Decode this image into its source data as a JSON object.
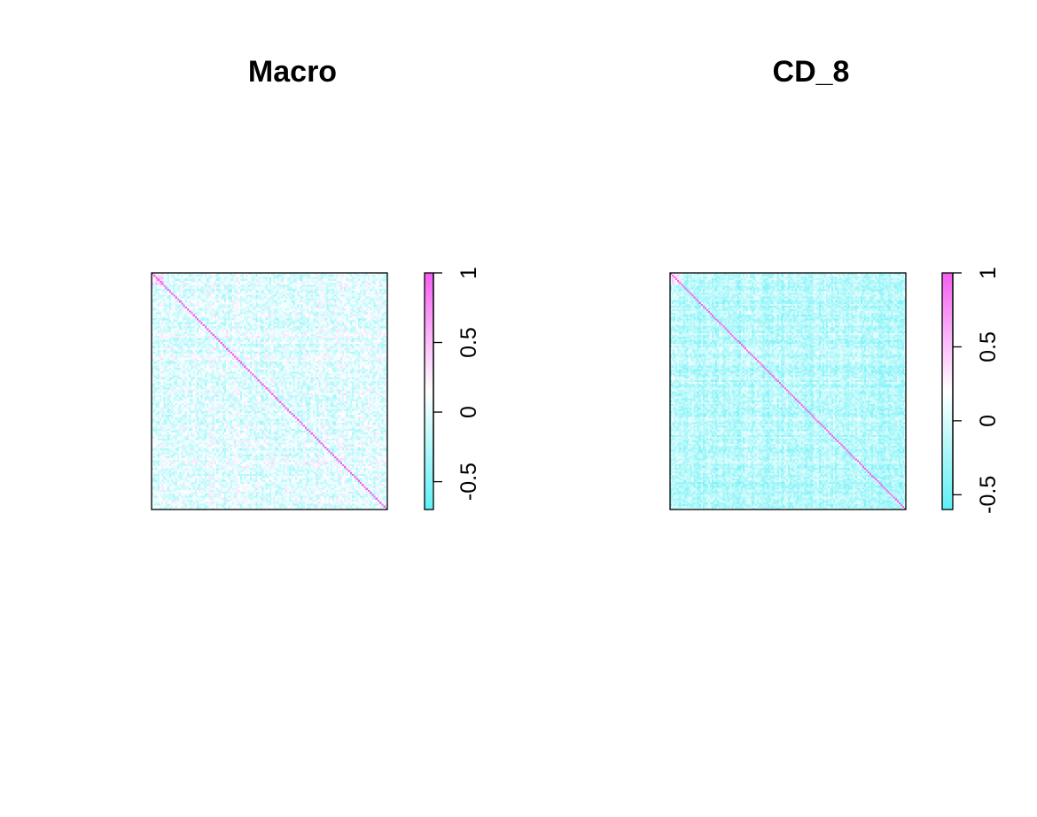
{
  "chart_data": [
    {
      "type": "heatmap",
      "title": "Macro",
      "matrix": "correlation matrix (cells drawn without row/column labels)",
      "diagonal_value": 1,
      "off_diagonal_typical_range": [
        -0.3,
        0.3
      ],
      "colorbar": {
        "range": [
          -0.7,
          1
        ],
        "ticks": [
          -0.5,
          0,
          0.5,
          1
        ],
        "tick_labels": [
          "-0.5",
          "0",
          "0.5",
          "1"
        ],
        "low_color": "#5ef0f5",
        "mid_color": "#ffffff",
        "high_color": "#f55ef0"
      },
      "xlabel": "",
      "ylabel": ""
    },
    {
      "type": "heatmap",
      "title": "CD_8",
      "matrix": "correlation matrix (cells drawn without row/column labels)",
      "diagonal_value": 1,
      "off_diagonal_typical_range": [
        -0.4,
        0.1
      ],
      "colorbar": {
        "range": [
          -0.6,
          1
        ],
        "ticks": [
          -0.5,
          0,
          0.5,
          1
        ],
        "tick_labels": [
          "-0.5",
          "0",
          "0.5",
          "1"
        ],
        "low_color": "#5ef0f5",
        "mid_color": "#ffffff",
        "high_color": "#f55ef0"
      },
      "xlabel": "",
      "ylabel": ""
    }
  ]
}
